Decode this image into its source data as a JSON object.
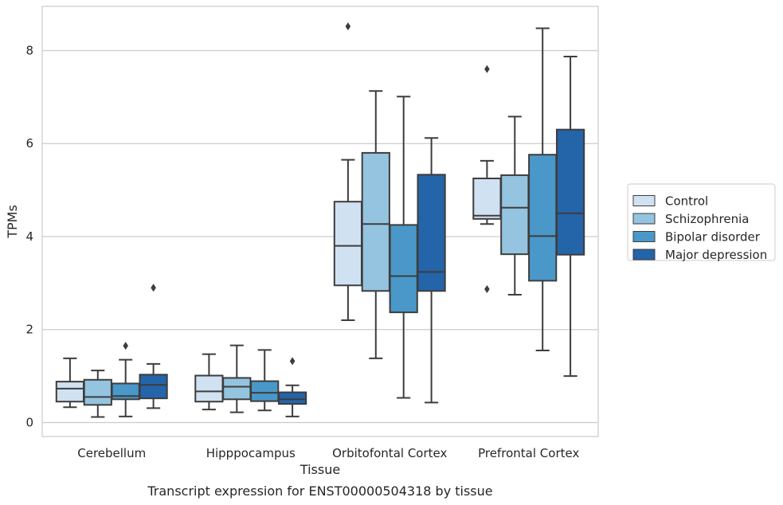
{
  "chart_data": {
    "type": "box",
    "title": "",
    "caption": "Transcript expression for ENST00000504318 by tissue",
    "xlabel": "Tissue",
    "ylabel": "TPMs",
    "ylim": [
      -0.3,
      8.95
    ],
    "yticks": [
      0,
      2,
      4,
      6,
      8
    ],
    "grid": "horizontal",
    "legend_position": "right",
    "categories": [
      "Cerebellum",
      "Hipppocampus",
      "Orbitofontal Cortex",
      "Prefrontal Cortex"
    ],
    "series": [
      {
        "name": "Control",
        "color": "#d0e1f2",
        "boxes": [
          {
            "whislo": 0.33,
            "q1": 0.45,
            "med": 0.73,
            "q3": 0.88,
            "whishi": 1.38,
            "fliers": []
          },
          {
            "whislo": 0.28,
            "q1": 0.45,
            "med": 0.67,
            "q3": 1.01,
            "whishi": 1.47,
            "fliers": []
          },
          {
            "whislo": 2.2,
            "q1": 2.95,
            "med": 3.8,
            "q3": 4.75,
            "whishi": 5.65,
            "fliers": [
              8.52
            ]
          },
          {
            "whislo": 4.27,
            "q1": 4.38,
            "med": 4.45,
            "q3": 5.25,
            "whishi": 5.63,
            "fliers": [
              7.6,
              2.87
            ]
          }
        ]
      },
      {
        "name": "Schizophrenia",
        "color": "#94c4df",
        "boxes": [
          {
            "whislo": 0.12,
            "q1": 0.38,
            "med": 0.55,
            "q3": 0.92,
            "whishi": 1.12,
            "fliers": []
          },
          {
            "whislo": 0.22,
            "q1": 0.5,
            "med": 0.77,
            "q3": 0.96,
            "whishi": 1.66,
            "fliers": []
          },
          {
            "whislo": 1.38,
            "q1": 2.83,
            "med": 4.27,
            "q3": 5.8,
            "whishi": 7.13,
            "fliers": []
          },
          {
            "whislo": 2.75,
            "q1": 3.62,
            "med": 4.62,
            "q3": 5.32,
            "whishi": 6.58,
            "fliers": []
          }
        ]
      },
      {
        "name": "Bipolar disorder",
        "color": "#4a98c9",
        "boxes": [
          {
            "whislo": 0.13,
            "q1": 0.5,
            "med": 0.57,
            "q3": 0.84,
            "whishi": 1.35,
            "fliers": [
              1.65
            ]
          },
          {
            "whislo": 0.26,
            "q1": 0.46,
            "med": 0.64,
            "q3": 0.89,
            "whishi": 1.56,
            "fliers": []
          },
          {
            "whislo": 0.53,
            "q1": 2.37,
            "med": 3.15,
            "q3": 4.25,
            "whishi": 7.01,
            "fliers": []
          },
          {
            "whislo": 1.55,
            "q1": 3.05,
            "med": 4.01,
            "q3": 5.76,
            "whishi": 8.48,
            "fliers": []
          }
        ]
      },
      {
        "name": "Major depression",
        "color": "#2464a8",
        "boxes": [
          {
            "whislo": 0.31,
            "q1": 0.52,
            "med": 0.81,
            "q3": 1.03,
            "whishi": 1.26,
            "fliers": [
              2.9
            ]
          },
          {
            "whislo": 0.13,
            "q1": 0.4,
            "med": 0.5,
            "q3": 0.65,
            "whishi": 0.8,
            "fliers": [
              1.32
            ]
          },
          {
            "whislo": 0.43,
            "q1": 2.83,
            "med": 3.24,
            "q3": 5.33,
            "whishi": 6.12,
            "fliers": []
          },
          {
            "whislo": 1.0,
            "q1": 3.61,
            "med": 4.5,
            "q3": 6.3,
            "whishi": 7.87,
            "fliers": []
          }
        ]
      }
    ]
  }
}
